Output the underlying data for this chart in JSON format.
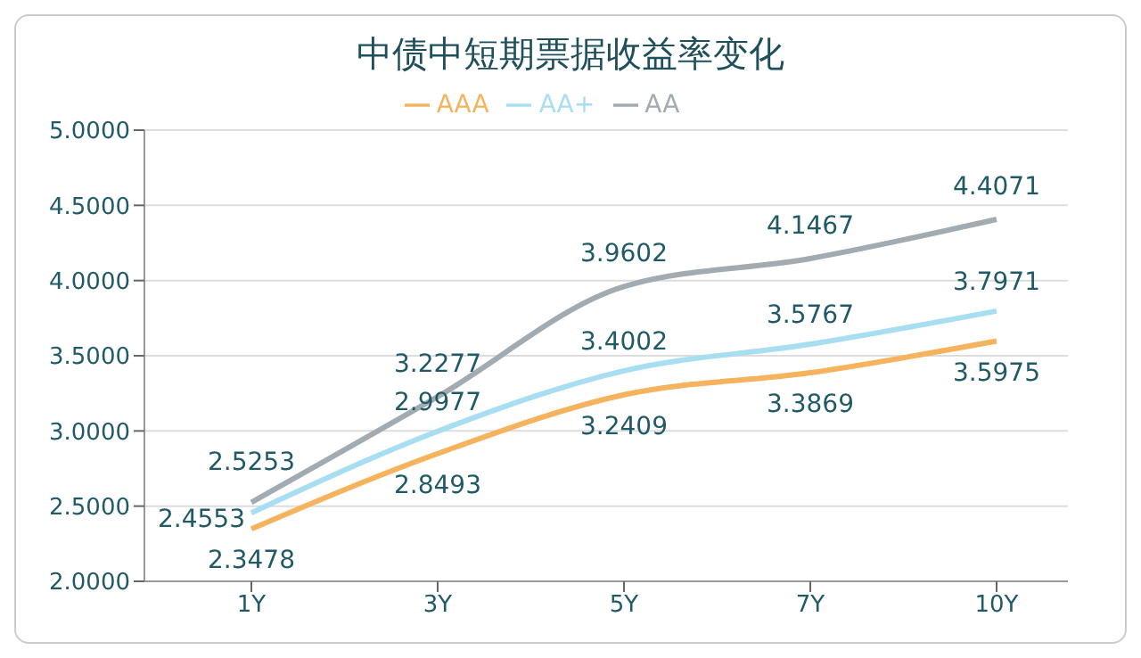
{
  "chart_data": {
    "type": "line",
    "title": "中债中短期票据收益率变化",
    "categories": [
      "1Y",
      "3Y",
      "5Y",
      "7Y",
      "10Y"
    ],
    "series": [
      {
        "name": "AAA",
        "color": "#f5b35e",
        "values": [
          2.3478,
          2.8493,
          3.2409,
          3.3869,
          3.5975
        ]
      },
      {
        "name": "AA+",
        "color": "#a8def2",
        "values": [
          2.4553,
          2.9977,
          3.4002,
          3.5767,
          3.7971
        ]
      },
      {
        "name": "AA",
        "color": "#a2abb1",
        "values": [
          2.5253,
          3.2277,
          3.9602,
          4.1467,
          4.4071
        ]
      }
    ],
    "ylim": [
      2,
      5
    ],
    "yticks": [
      {
        "value": 2,
        "label": "2.0000"
      },
      {
        "value": 2.5,
        "label": "2.5000"
      },
      {
        "value": 3,
        "label": "3.0000"
      },
      {
        "value": 3.5,
        "label": "3.5000"
      },
      {
        "value": 4,
        "label": "4.0000"
      },
      {
        "value": 4.5,
        "label": "4.5000"
      },
      {
        "value": 5,
        "label": "5.0000"
      }
    ],
    "grid": "y",
    "legend": "top",
    "marker": "none",
    "line_style": "solid",
    "data_labels": true
  }
}
